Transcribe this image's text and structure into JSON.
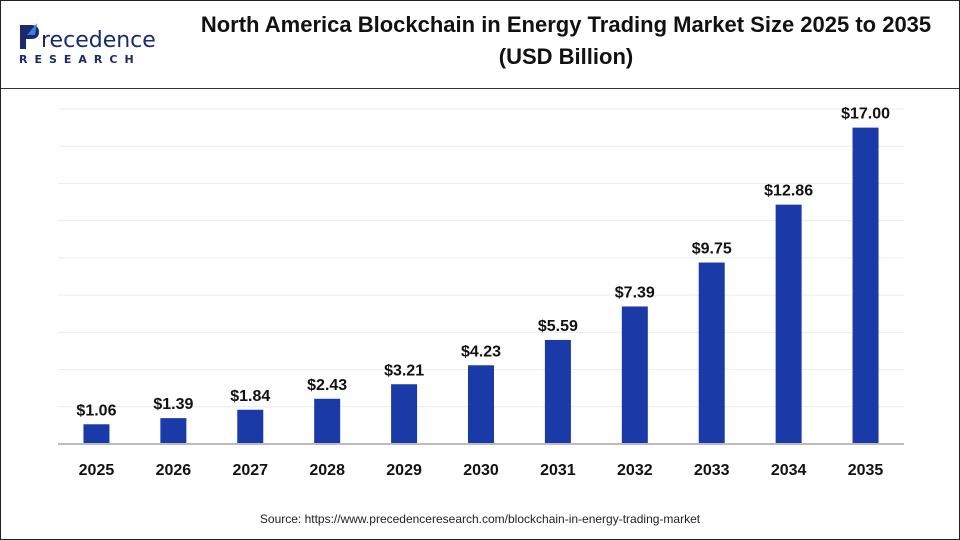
{
  "logo": {
    "text_top": "Precedence",
    "text_bottom": "RESEARCH"
  },
  "title": "North America Blockchain in Energy Trading Market Size 2025 to 2035 (USD Billion)",
  "source": "Source: https://www.precedenceresearch.com/blockchain-in-energy-trading-market",
  "chart_data": {
    "type": "bar",
    "title": "North America Blockchain in Energy Trading Market Size 2025 to 2035 (USD Billion)",
    "categories": [
      "2025",
      "2026",
      "2027",
      "2028",
      "2029",
      "2030",
      "2031",
      "2032",
      "2033",
      "2034",
      "2035"
    ],
    "values": [
      1.06,
      1.39,
      1.84,
      2.43,
      3.21,
      4.23,
      5.59,
      7.39,
      9.75,
      12.86,
      17.0
    ],
    "data_labels": [
      "$1.06",
      "$1.39",
      "$1.84",
      "$2.43",
      "$3.21",
      "$4.23",
      "$5.59",
      "$7.39",
      "$9.75",
      "$12.86",
      "$17.00"
    ],
    "xlabel": "",
    "ylabel": "",
    "ylim": [
      0,
      18
    ],
    "grid": true,
    "legend": "none",
    "bar_color": "#1a3aa8"
  }
}
